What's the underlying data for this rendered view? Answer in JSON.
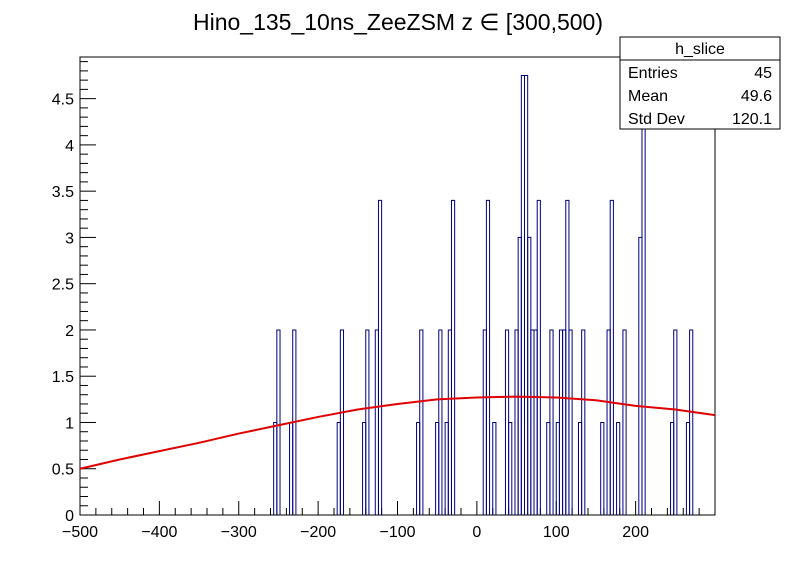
{
  "chart_data": {
    "type": "histogram",
    "title": "Hino_135_10ns_ZeeZSM z   ∈ [300,500)",
    "xlabel": "",
    "ylabel": "",
    "xlim": [
      -500,
      300
    ],
    "ylim": [
      0,
      4.95
    ],
    "grid": false,
    "bin_width": 4,
    "x_ticks": [
      -500,
      -400,
      -300,
      -200,
      -100,
      0,
      100,
      200
    ],
    "y_ticks": [
      0,
      0.5,
      1,
      1.5,
      2,
      2.5,
      3,
      3.5,
      4,
      4.5
    ],
    "bins": [
      {
        "x": -256,
        "value": 1
      },
      {
        "x": -252,
        "value": 2
      },
      {
        "x": -236,
        "value": 1
      },
      {
        "x": -232,
        "value": 2
      },
      {
        "x": -176,
        "value": 1
      },
      {
        "x": -172,
        "value": 2
      },
      {
        "x": -144,
        "value": 1
      },
      {
        "x": -140,
        "value": 2
      },
      {
        "x": -128,
        "value": 2
      },
      {
        "x": -124,
        "value": 3.4
      },
      {
        "x": -76,
        "value": 1
      },
      {
        "x": -72,
        "value": 2
      },
      {
        "x": -52,
        "value": 1
      },
      {
        "x": -48,
        "value": 2
      },
      {
        "x": -40,
        "value": 1
      },
      {
        "x": -36,
        "value": 2
      },
      {
        "x": -32,
        "value": 3.4
      },
      {
        "x": 8,
        "value": 2
      },
      {
        "x": 12,
        "value": 3.4
      },
      {
        "x": 20,
        "value": 1
      },
      {
        "x": 36,
        "value": 2
      },
      {
        "x": 40,
        "value": 1
      },
      {
        "x": 48,
        "value": 2
      },
      {
        "x": 52,
        "value": 3
      },
      {
        "x": 56,
        "value": 4.75
      },
      {
        "x": 60,
        "value": 4.75
      },
      {
        "x": 64,
        "value": 3
      },
      {
        "x": 68,
        "value": 2
      },
      {
        "x": 72,
        "value": 2
      },
      {
        "x": 76,
        "value": 3.4
      },
      {
        "x": 88,
        "value": 1
      },
      {
        "x": 92,
        "value": 2
      },
      {
        "x": 100,
        "value": 1
      },
      {
        "x": 104,
        "value": 2
      },
      {
        "x": 108,
        "value": 2
      },
      {
        "x": 112,
        "value": 3.4
      },
      {
        "x": 116,
        "value": 2
      },
      {
        "x": 128,
        "value": 1
      },
      {
        "x": 132,
        "value": 2
      },
      {
        "x": 156,
        "value": 1
      },
      {
        "x": 164,
        "value": 2
      },
      {
        "x": 168,
        "value": 3.4
      },
      {
        "x": 176,
        "value": 1
      },
      {
        "x": 184,
        "value": 2
      },
      {
        "x": 204,
        "value": 3
      },
      {
        "x": 208,
        "value": 4.6
      },
      {
        "x": 244,
        "value": 1
      },
      {
        "x": 248,
        "value": 2
      },
      {
        "x": 264,
        "value": 1
      },
      {
        "x": 268,
        "value": 2
      }
    ],
    "fit_curve": {
      "x": [
        -500,
        -450,
        -400,
        -350,
        -300,
        -250,
        -200,
        -150,
        -100,
        -50,
        0,
        50,
        100,
        150,
        200,
        250,
        300
      ],
      "y": [
        0.5,
        0.6,
        0.69,
        0.78,
        0.88,
        0.97,
        1.06,
        1.14,
        1.2,
        1.25,
        1.27,
        1.28,
        1.27,
        1.24,
        1.18,
        1.14,
        1.08
      ]
    },
    "stats_box": {
      "title": "h_slice",
      "rows": [
        {
          "label": "Entries",
          "value": "45"
        },
        {
          "label": "Mean",
          "value": "49.6"
        },
        {
          "label": "Std Dev",
          "value": "120.1"
        }
      ]
    },
    "colors": {
      "histogram": "#000080",
      "fit": "#e00000",
      "axis": "#000000"
    }
  }
}
